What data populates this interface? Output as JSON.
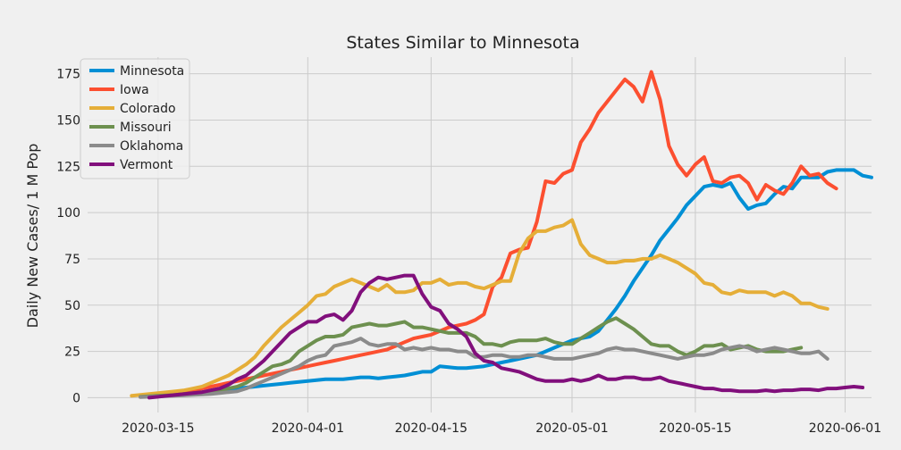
{
  "chart_data": {
    "type": "line",
    "title": "States Similar to Minnesota",
    "xlabel": "",
    "ylabel": "Daily New Cases/ 1 M Pop",
    "x_start": "2020-03-12",
    "x_ticks": [
      "2020-03-15",
      "2020-04-01",
      "2020-04-15",
      "2020-05-01",
      "2020-05-15",
      "2020-06-01"
    ],
    "xlim": [
      "2020-03-07",
      "2020-06-04"
    ],
    "y_ticks": [
      0,
      25,
      50,
      75,
      100,
      125,
      150,
      175
    ],
    "ylim": [
      -8,
      184
    ],
    "grid": true,
    "legend_position": "top-left",
    "series": [
      {
        "name": "Minnesota",
        "color": "#008fd5",
        "start": "2020-03-13",
        "values": [
          0.5,
          0.8,
          1,
          1.3,
          1.6,
          2,
          2.4,
          2.8,
          3.2,
          3.8,
          4.5,
          5,
          5.5,
          6,
          6.5,
          7,
          7.5,
          8,
          8.5,
          9,
          9.5,
          10,
          10,
          10,
          10.5,
          11,
          11,
          10.5,
          11,
          11.5,
          12,
          13,
          14,
          14,
          17,
          16.5,
          16,
          16,
          16.5,
          17,
          18,
          19,
          20,
          21,
          22,
          23,
          25,
          27,
          29,
          31,
          32,
          33,
          36,
          42,
          48,
          55,
          63,
          70,
          77,
          85,
          91,
          97,
          104,
          109,
          114,
          115,
          114,
          116,
          108,
          102,
          104,
          105,
          110,
          114,
          113,
          119,
          119,
          119,
          122,
          123,
          123,
          123,
          120,
          119
        ]
      },
      {
        "name": "Iowa",
        "color": "#fc4f30",
        "start": "2020-03-13",
        "values": [
          0.5,
          1,
          1.5,
          2,
          2.5,
          3,
          4,
          5,
          6,
          7,
          8,
          9,
          10,
          11,
          12,
          13,
          14,
          15,
          16,
          17,
          18,
          19,
          20,
          21,
          22,
          23,
          24,
          25,
          26,
          28,
          30,
          32,
          33,
          34,
          36,
          38,
          39,
          40,
          42,
          45,
          60,
          65,
          78,
          80,
          81,
          95,
          117,
          116,
          121,
          123,
          138,
          145,
          154,
          160,
          166,
          172,
          168,
          160,
          176,
          161,
          136,
          126,
          120,
          126,
          130,
          117,
          116,
          119,
          120,
          116,
          107,
          115,
          112,
          110,
          116,
          125,
          120,
          121,
          116,
          113
        ]
      },
      {
        "name": "Colorado",
        "color": "#e5ae38",
        "start": "2020-03-12",
        "values": [
          1,
          1.5,
          2,
          2.5,
          3,
          3.5,
          4,
          5,
          6,
          8,
          10,
          12,
          15,
          18,
          22,
          28,
          33,
          38,
          42,
          46,
          50,
          55,
          56,
          60,
          62,
          64,
          62,
          60,
          58,
          61,
          57,
          57,
          58,
          62,
          62,
          64,
          61,
          62,
          62,
          60,
          59,
          61,
          63,
          63,
          78,
          86,
          90,
          90,
          92,
          93,
          96,
          83,
          77,
          75,
          73,
          73,
          74,
          74,
          75,
          75,
          77,
          75,
          73,
          70,
          67,
          62,
          61,
          57,
          56,
          58,
          57,
          57,
          57,
          55,
          57,
          55,
          51,
          51,
          49,
          48
        ]
      },
      {
        "name": "Missouri",
        "color": "#6d904f",
        "start": "2020-03-13",
        "values": [
          0.5,
          0.8,
          1,
          1.2,
          1.5,
          2,
          2.5,
          3,
          3.5,
          4,
          5,
          6,
          8,
          11,
          14,
          17,
          18,
          20,
          25,
          28,
          31,
          33,
          33,
          34,
          38,
          39,
          40,
          39,
          39,
          40,
          41,
          38,
          38,
          37,
          36,
          35,
          35,
          35,
          33,
          29,
          29,
          28,
          30,
          31,
          31,
          31,
          32,
          30,
          29,
          29,
          32,
          35,
          38,
          41,
          43,
          40,
          37,
          33,
          29,
          28,
          28,
          25,
          23,
          25,
          28,
          28,
          29,
          26,
          27,
          28,
          26,
          25,
          25,
          25,
          26,
          27
        ]
      },
      {
        "name": "Oklahoma",
        "color": "#8b8b8b",
        "start": "2020-03-13",
        "values": [
          0.3,
          0.5,
          0.7,
          0.9,
          1.1,
          1.3,
          1.5,
          1.8,
          2,
          2.5,
          3,
          3.5,
          5,
          7,
          9,
          11,
          13,
          15,
          17,
          20,
          22,
          23,
          28,
          29,
          30,
          32,
          29,
          28,
          29,
          29,
          26,
          27,
          26,
          27,
          26,
          26,
          25,
          25,
          22,
          22,
          23,
          23,
          22,
          22,
          23,
          23,
          22,
          21,
          21,
          21,
          22,
          23,
          24,
          26,
          27,
          26,
          26,
          25,
          24,
          23,
          22,
          21,
          22,
          23,
          23,
          24,
          26,
          27,
          28,
          27,
          25,
          26,
          27,
          26,
          25,
          24,
          24,
          25,
          21
        ]
      },
      {
        "name": "Vermont",
        "color": "#810f7c",
        "start": "2020-03-14",
        "values": [
          0,
          0.5,
          1,
          1.5,
          2,
          2.5,
          3,
          4,
          5,
          7,
          10,
          12,
          16,
          20,
          25,
          30,
          35,
          38,
          41,
          41,
          44,
          45,
          42,
          47,
          57,
          62,
          65,
          64,
          65,
          66,
          66,
          56,
          49,
          47,
          40,
          37,
          33,
          24,
          20,
          19,
          16,
          15,
          14,
          12,
          10,
          9,
          9,
          9,
          10,
          9,
          10,
          12,
          10,
          10,
          11,
          11,
          10,
          10,
          11,
          9,
          8,
          7,
          6,
          5,
          5,
          4,
          4,
          3.5,
          3.5,
          3.5,
          4,
          3.5,
          4,
          4,
          4.5,
          4.5,
          4,
          5,
          5,
          5.5,
          6,
          5.5
        ]
      }
    ]
  }
}
